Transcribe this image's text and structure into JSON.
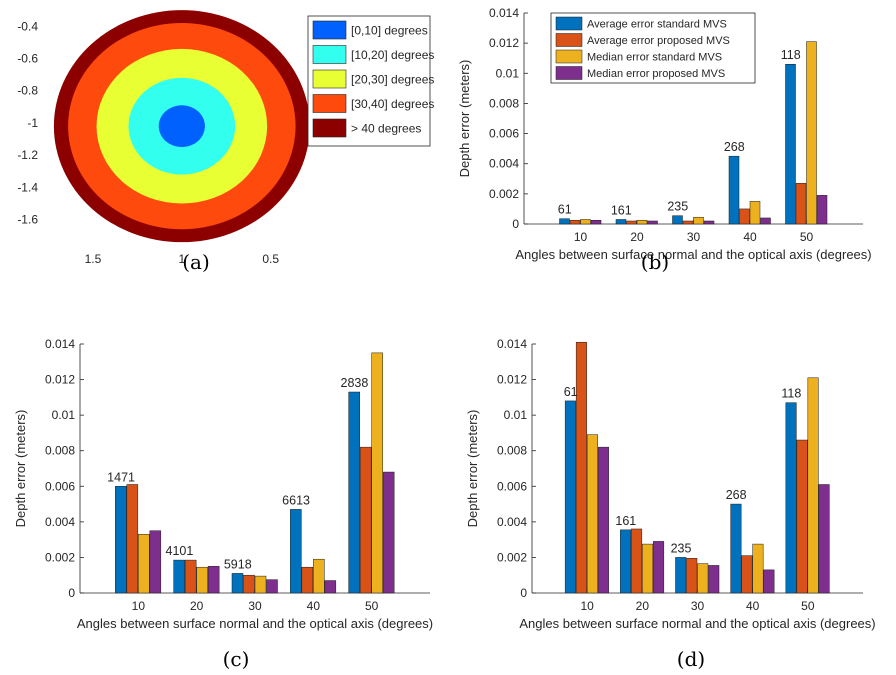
{
  "figure": {
    "captions": [
      "(a)",
      "(b)",
      "(c)",
      "(d)"
    ]
  },
  "colors": {
    "avg_std": "#0072BD",
    "avg_prop": "#D95319",
    "med_std": "#EDB120",
    "med_prop": "#7E2F8E",
    "ring_0_10": "#0061ff",
    "ring_10_20": "#33ffee",
    "ring_20_30": "#e8ff33",
    "ring_30_40": "#ff4a0d",
    "ring_40_plus": "#8c0000"
  },
  "chart_data": [
    {
      "id": "a",
      "type": "heatmap",
      "xticks": [
        "1.5",
        "1",
        "0.5"
      ],
      "xtick_values": [
        1.5,
        1.0,
        0.5
      ],
      "xlim": [
        1.77,
        0.38
      ],
      "x_reversed": true,
      "yticks": [
        "-0.4",
        "-0.6",
        "-0.8",
        "-1",
        "-1.2",
        "-1.4",
        "-1.6"
      ],
      "ytick_values": [
        -0.4,
        -0.6,
        -0.8,
        -1.0,
        -1.2,
        -1.4,
        -1.6
      ],
      "ylim": [
        -1.77,
        -0.33
      ],
      "center": [
        1.0,
        -1.02
      ],
      "ring_radii": [
        0.13,
        0.3,
        0.48,
        0.64,
        0.72
      ],
      "legend": [
        "[0,10] degrees",
        "[10,20] degrees",
        "[20,30] degrees",
        "[30,40] degrees",
        "> 40 degrees"
      ]
    },
    {
      "id": "b",
      "type": "bar",
      "categories": [
        "10",
        "20",
        "30",
        "40",
        "50"
      ],
      "series": [
        {
          "name": "Average error standard MVS",
          "values": [
            0.00035,
            0.0003,
            0.00055,
            0.0045,
            0.0106
          ]
        },
        {
          "name": "Average error proposed MVS",
          "values": [
            0.00025,
            0.0002,
            0.0002,
            0.001,
            0.0027
          ]
        },
        {
          "name": "Median error standard MVS",
          "values": [
            0.0003,
            0.00025,
            0.00045,
            0.0015,
            0.0121
          ]
        },
        {
          "name": "Median error proposed MVS",
          "values": [
            0.00025,
            0.0002,
            0.0002,
            0.0004,
            0.0019
          ]
        }
      ],
      "counts": [
        "61",
        "161",
        "235",
        "268",
        "118"
      ],
      "ylim": [
        0,
        0.014
      ],
      "yticks": [
        "0",
        "0.002",
        "0.004",
        "0.006",
        "0.008",
        "0.01",
        "0.012",
        "0.014"
      ],
      "xlabel": "Angles between surface normal and the optical axis (degrees)",
      "ylabel": "Depth error (meters)",
      "legend_position": "top-left"
    },
    {
      "id": "c",
      "type": "bar",
      "categories": [
        "10",
        "20",
        "30",
        "40",
        "50"
      ],
      "series": [
        {
          "name": "Average error standard MVS",
          "values": [
            0.006,
            0.00185,
            0.0011,
            0.0047,
            0.0113
          ]
        },
        {
          "name": "Average error proposed MVS",
          "values": [
            0.0061,
            0.00185,
            0.001,
            0.00145,
            0.0082
          ]
        },
        {
          "name": "Median error standard MVS",
          "values": [
            0.0033,
            0.00145,
            0.00095,
            0.0019,
            0.0135
          ]
        },
        {
          "name": "Median error proposed MVS",
          "values": [
            0.0035,
            0.0015,
            0.00075,
            0.0007,
            0.0068
          ]
        }
      ],
      "counts": [
        "1471",
        "4101",
        "5918",
        "6613",
        "2838"
      ],
      "ylim": [
        0,
        0.014
      ],
      "yticks": [
        "0",
        "0.002",
        "0.004",
        "0.006",
        "0.008",
        "0.01",
        "0.012",
        "0.014"
      ],
      "xlabel": "Angles between surface normal and the optical axis (degrees)",
      "ylabel": "Depth error (meters)"
    },
    {
      "id": "d",
      "type": "bar",
      "categories": [
        "10",
        "20",
        "30",
        "40",
        "50"
      ],
      "series": [
        {
          "name": "Average error standard MVS",
          "values": [
            0.0108,
            0.00355,
            0.002,
            0.005,
            0.0107
          ]
        },
        {
          "name": "Average error proposed MVS",
          "values": [
            0.0141,
            0.0036,
            0.00195,
            0.0021,
            0.0086
          ]
        },
        {
          "name": "Median error standard MVS",
          "values": [
            0.0089,
            0.00275,
            0.00165,
            0.00275,
            0.0121
          ]
        },
        {
          "name": "Median error proposed MVS",
          "values": [
            0.0082,
            0.0029,
            0.00155,
            0.0013,
            0.0061
          ]
        }
      ],
      "counts": [
        "61",
        "161",
        "235",
        "268",
        "118"
      ],
      "ylim": [
        0,
        0.014
      ],
      "yticks": [
        "0",
        "0.002",
        "0.004",
        "0.006",
        "0.008",
        "0.01",
        "0.012",
        "0.014"
      ],
      "xlabel": "Angles between surface normal and the optical axis (degrees)",
      "ylabel": "Depth error (meters)"
    }
  ]
}
